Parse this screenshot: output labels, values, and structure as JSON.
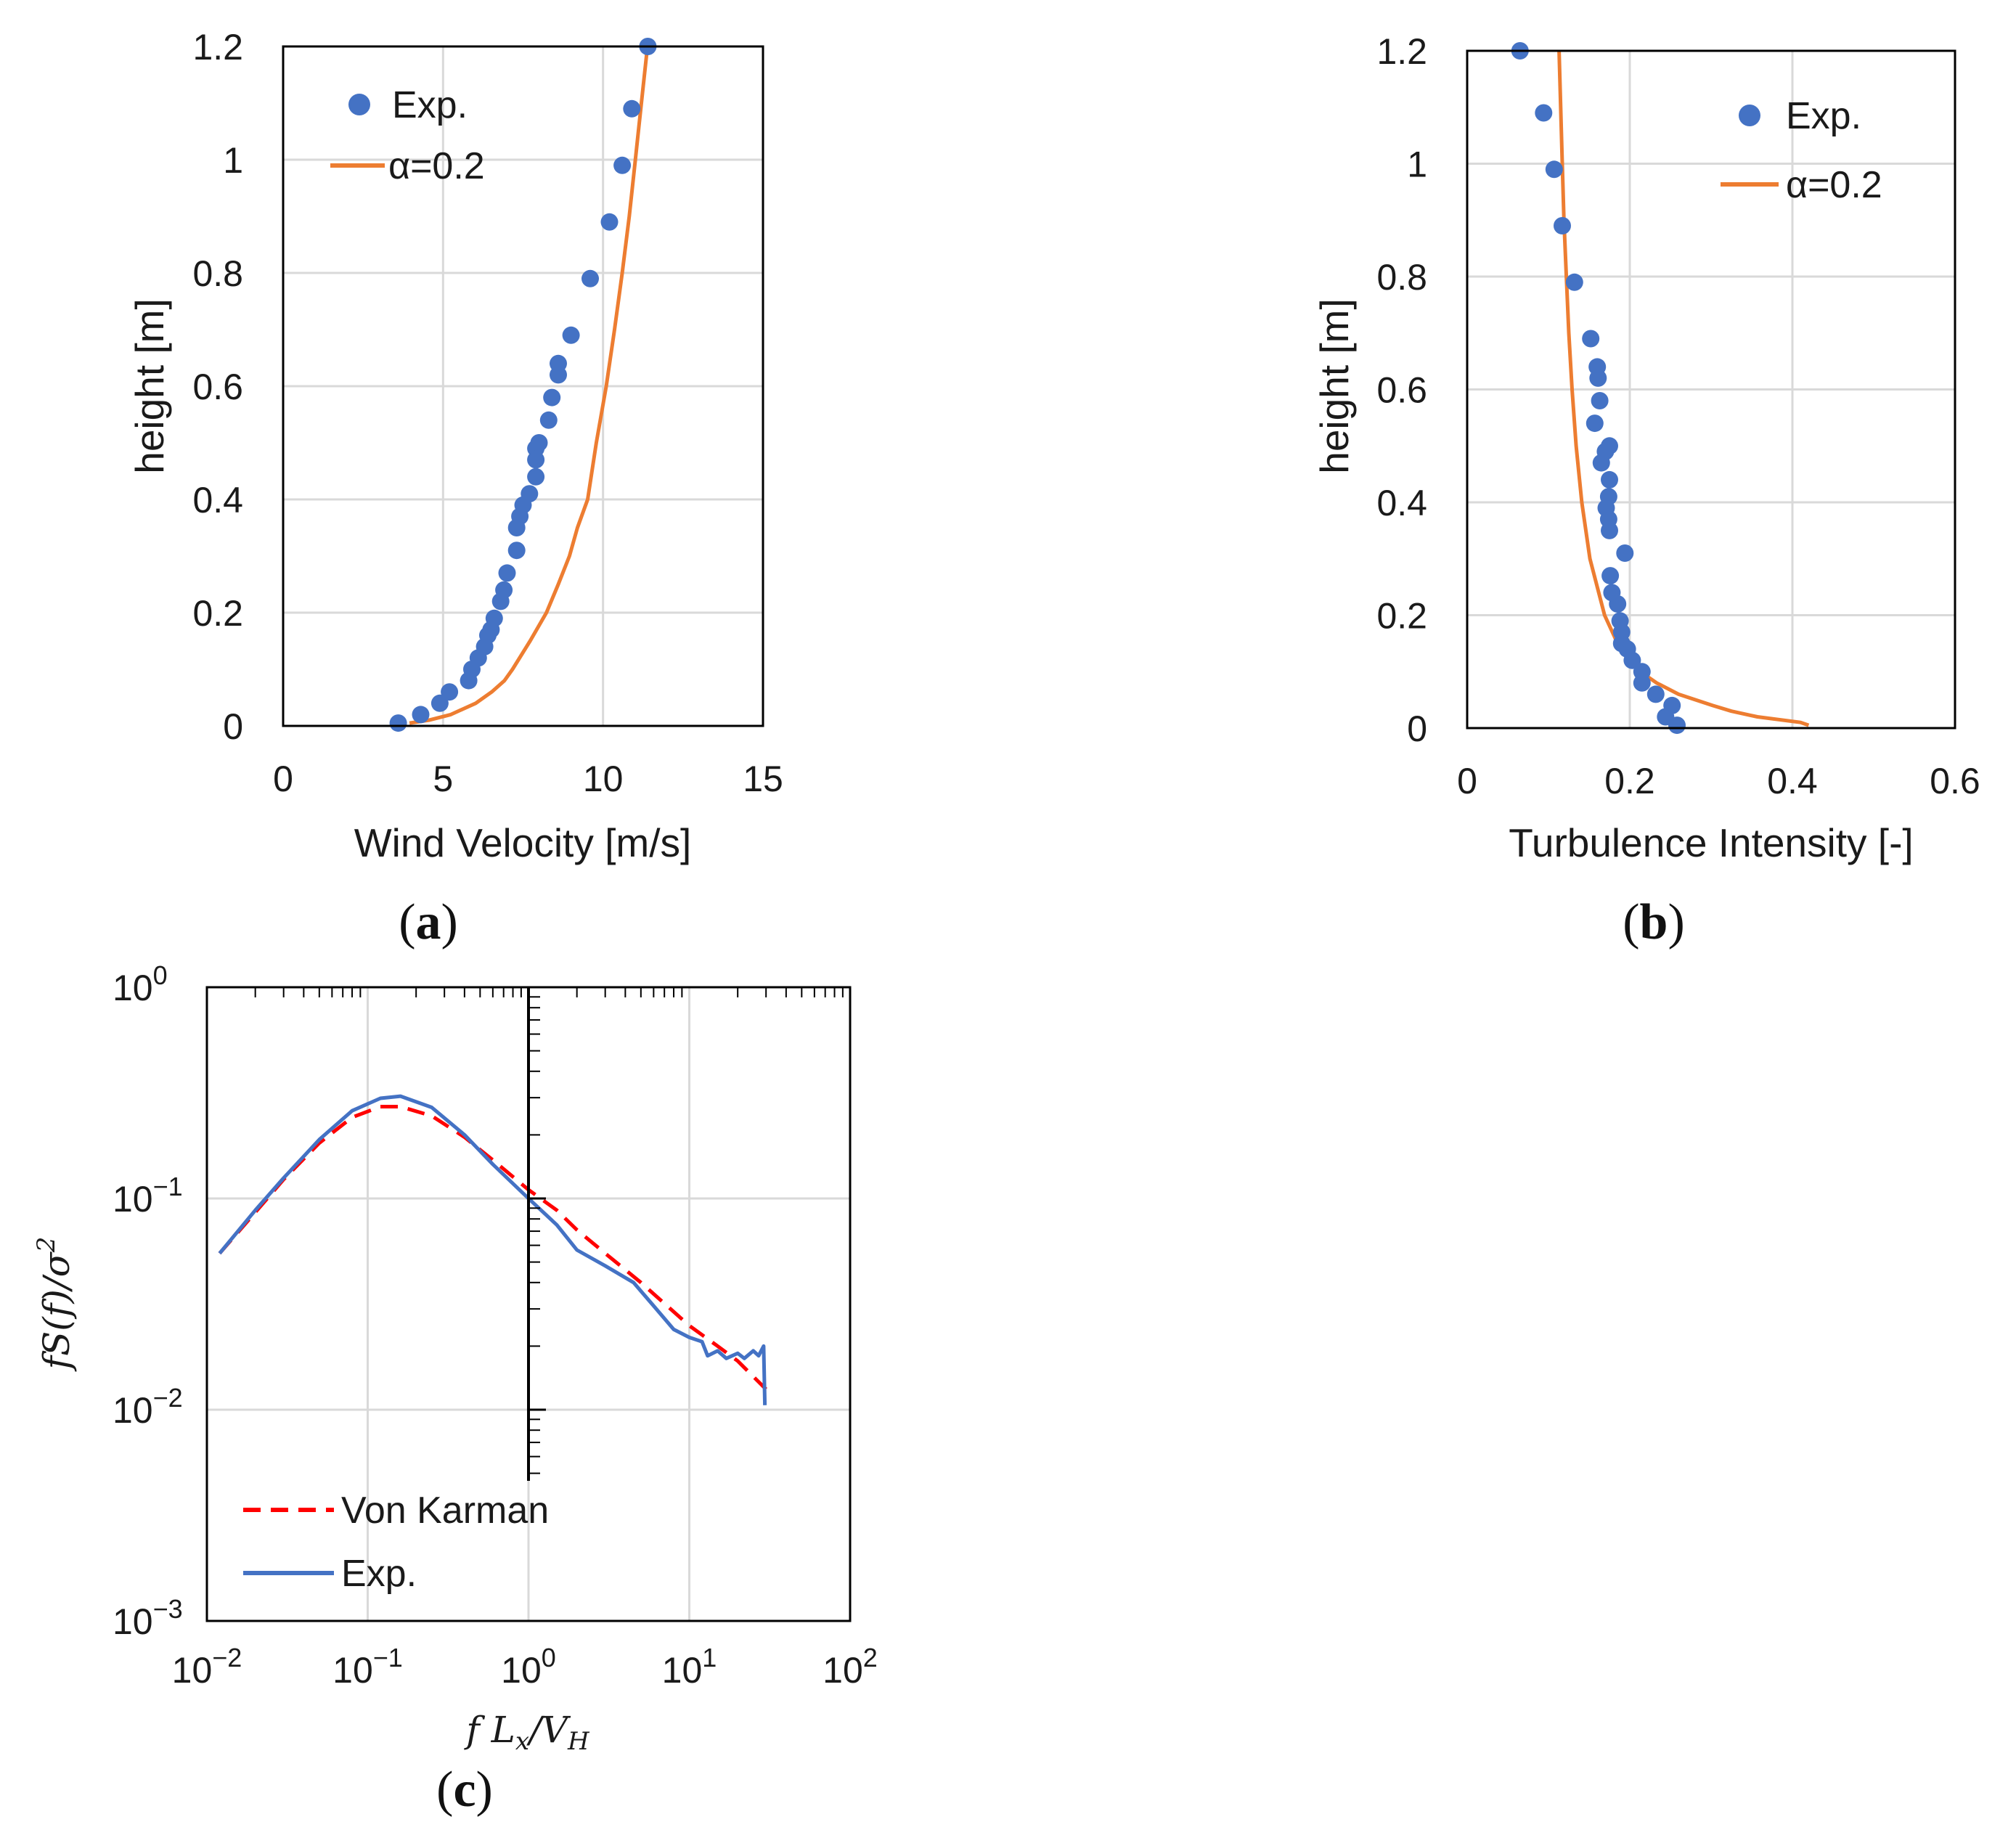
{
  "colors": {
    "exp_marker": "#4472c4",
    "alpha_line": "#ed7d31",
    "von_karman": "#ff0000",
    "exp_line": "#4472c4",
    "grid": "#d9d9d9"
  },
  "chart_data": [
    {
      "id": "a",
      "type": "scatter",
      "panel_label": "a",
      "xlabel": "Wind Velocity [m/s]",
      "ylabel": "height [m]",
      "xlim": [
        0,
        15
      ],
      "ylim": [
        0,
        1.2
      ],
      "xticks": [
        "0",
        "5",
        "10",
        "15"
      ],
      "yticks": [
        "0",
        "0.2",
        "0.4",
        "0.6",
        "0.8",
        "1",
        "1.2"
      ],
      "xtick_values": [
        0,
        5,
        10,
        15
      ],
      "ytick_values": [
        0,
        0.2,
        0.4,
        0.6,
        0.8,
        1.0,
        1.2
      ],
      "legend": [
        "Exp.",
        "α=0.2"
      ],
      "legend_position": "top-left",
      "series": [
        {
          "name": "Exp.",
          "kind": "marker",
          "points": [
            [
              3.6,
              0.005
            ],
            [
              4.3,
              0.02
            ],
            [
              4.9,
              0.04
            ],
            [
              5.2,
              0.06
            ],
            [
              5.8,
              0.08
            ],
            [
              5.9,
              0.1
            ],
            [
              6.1,
              0.12
            ],
            [
              6.3,
              0.14
            ],
            [
              6.4,
              0.16
            ],
            [
              6.5,
              0.17
            ],
            [
              6.6,
              0.19
            ],
            [
              6.8,
              0.22
            ],
            [
              6.9,
              0.24
            ],
            [
              7.0,
              0.27
            ],
            [
              7.3,
              0.31
            ],
            [
              7.3,
              0.35
            ],
            [
              7.4,
              0.37
            ],
            [
              7.5,
              0.39
            ],
            [
              7.7,
              0.41
            ],
            [
              7.9,
              0.44
            ],
            [
              7.9,
              0.47
            ],
            [
              7.9,
              0.49
            ],
            [
              8.0,
              0.5
            ],
            [
              8.3,
              0.54
            ],
            [
              8.4,
              0.58
            ],
            [
              8.6,
              0.62
            ],
            [
              8.6,
              0.64
            ],
            [
              9.0,
              0.69
            ],
            [
              9.6,
              0.79
            ],
            [
              10.2,
              0.89
            ],
            [
              10.6,
              0.99
            ],
            [
              10.9,
              1.09
            ],
            [
              11.4,
              1.2
            ]
          ]
        },
        {
          "name": "α=0.2",
          "kind": "line",
          "points": [
            [
              3.95,
              0.005
            ],
            [
              4.55,
              0.01
            ],
            [
              5.24,
              0.02
            ],
            [
              6.02,
              0.04
            ],
            [
              6.52,
              0.06
            ],
            [
              6.92,
              0.08
            ],
            [
              7.17,
              0.1
            ],
            [
              7.72,
              0.15
            ],
            [
              8.23,
              0.2
            ],
            [
              8.6,
              0.25
            ],
            [
              8.95,
              0.3
            ],
            [
              9.2,
              0.35
            ],
            [
              9.52,
              0.4
            ],
            [
              9.79,
              0.5
            ],
            [
              10.1,
              0.6
            ],
            [
              10.36,
              0.7
            ],
            [
              10.6,
              0.8
            ],
            [
              10.82,
              0.9
            ],
            [
              11.01,
              1.0
            ],
            [
              11.2,
              1.1
            ],
            [
              11.39,
              1.2
            ]
          ]
        }
      ]
    },
    {
      "id": "b",
      "type": "scatter",
      "panel_label": "b",
      "xlabel": "Turbulence Intensity [-]",
      "ylabel": "height [m]",
      "xlim": [
        0,
        0.6
      ],
      "ylim": [
        0,
        1.2
      ],
      "xticks": [
        "0",
        "0.2",
        "0.4",
        "0.6"
      ],
      "yticks": [
        "0",
        "0.2",
        "0.4",
        "0.6",
        "0.8",
        "1",
        "1.2"
      ],
      "xtick_values": [
        0,
        0.2,
        0.4,
        0.6
      ],
      "ytick_values": [
        0,
        0.2,
        0.4,
        0.6,
        0.8,
        1.0,
        1.2
      ],
      "legend": [
        "Exp.",
        "α=0.2"
      ],
      "legend_position": "top-right",
      "series": [
        {
          "name": "Exp.",
          "kind": "marker",
          "points": [
            [
              0.065,
              1.2
            ],
            [
              0.094,
              1.09
            ],
            [
              0.107,
              0.99
            ],
            [
              0.117,
              0.89
            ],
            [
              0.132,
              0.79
            ],
            [
              0.152,
              0.69
            ],
            [
              0.16,
              0.64
            ],
            [
              0.161,
              0.62
            ],
            [
              0.163,
              0.58
            ],
            [
              0.157,
              0.54
            ],
            [
              0.175,
              0.5
            ],
            [
              0.17,
              0.49
            ],
            [
              0.165,
              0.47
            ],
            [
              0.175,
              0.44
            ],
            [
              0.174,
              0.41
            ],
            [
              0.171,
              0.39
            ],
            [
              0.174,
              0.37
            ],
            [
              0.175,
              0.35
            ],
            [
              0.194,
              0.31
            ],
            [
              0.176,
              0.27
            ],
            [
              0.178,
              0.24
            ],
            [
              0.185,
              0.22
            ],
            [
              0.188,
              0.19
            ],
            [
              0.19,
              0.17
            ],
            [
              0.19,
              0.15
            ],
            [
              0.197,
              0.14
            ],
            [
              0.203,
              0.12
            ],
            [
              0.215,
              0.1
            ],
            [
              0.215,
              0.08
            ],
            [
              0.232,
              0.06
            ],
            [
              0.252,
              0.04
            ],
            [
              0.244,
              0.02
            ],
            [
              0.258,
              0.005
            ]
          ]
        },
        {
          "name": "α=0.2",
          "kind": "line",
          "points": [
            [
              0.113,
              1.2
            ],
            [
              0.115,
              1.1
            ],
            [
              0.117,
              1.0
            ],
            [
              0.119,
              0.9
            ],
            [
              0.122,
              0.8
            ],
            [
              0.125,
              0.7
            ],
            [
              0.129,
              0.6
            ],
            [
              0.134,
              0.5
            ],
            [
              0.141,
              0.4
            ],
            [
              0.151,
              0.3
            ],
            [
              0.169,
              0.2
            ],
            [
              0.185,
              0.15
            ],
            [
              0.213,
              0.1
            ],
            [
              0.233,
              0.08
            ],
            [
              0.26,
              0.06
            ],
            [
              0.302,
              0.04
            ],
            [
              0.325,
              0.03
            ],
            [
              0.357,
              0.02
            ],
            [
              0.41,
              0.01
            ],
            [
              0.42,
              0.005
            ]
          ]
        }
      ]
    },
    {
      "id": "c",
      "type": "line",
      "panel_label": "c",
      "xlabel": "fLx/VH",
      "ylabel": "fS(f)/σ2",
      "xscale": "log",
      "yscale": "log",
      "xlim": [
        0.01,
        100
      ],
      "ylim": [
        0.001,
        1
      ],
      "xticks": [
        {
          "base": "10",
          "exp": "−2"
        },
        {
          "base": "10",
          "exp": "−1"
        },
        {
          "base": "10",
          "exp": "0"
        },
        {
          "base": "10",
          "exp": "1"
        },
        {
          "base": "10",
          "exp": "2"
        }
      ],
      "yticks": [
        {
          "base": "10",
          "exp": "0"
        },
        {
          "base": "10",
          "exp": "−1"
        },
        {
          "base": "10",
          "exp": "−2"
        },
        {
          "base": "10",
          "exp": "−3"
        }
      ],
      "xtick_values": [
        0.01,
        0.1,
        1,
        10,
        100
      ],
      "ytick_values": [
        1,
        0.1,
        0.01,
        0.001
      ],
      "legend": [
        "Von Karman",
        "Exp."
      ],
      "legend_position": "bottom-left",
      "series": [
        {
          "name": "Von Karman",
          "kind": "dashed",
          "points": [
            [
              0.012,
              0.055
            ],
            [
              0.02,
              0.086
            ],
            [
              0.03,
              0.123
            ],
            [
              0.05,
              0.183
            ],
            [
              0.08,
              0.242
            ],
            [
              0.12,
              0.272
            ],
            [
              0.16,
              0.272
            ],
            [
              0.25,
              0.246
            ],
            [
              0.4,
              0.195
            ],
            [
              0.6,
              0.152
            ],
            [
              1.0,
              0.11
            ],
            [
              1.5,
              0.088
            ],
            [
              2.0,
              0.071
            ],
            [
              3.0,
              0.055
            ],
            [
              5.0,
              0.04
            ],
            [
              10.0,
              0.025
            ],
            [
              15.0,
              0.02
            ],
            [
              20.0,
              0.017
            ],
            [
              30.0,
              0.0125
            ]
          ]
        },
        {
          "name": "Exp.",
          "kind": "solid",
          "points": [
            [
              0.012,
              0.055
            ],
            [
              0.02,
              0.088
            ],
            [
              0.03,
              0.125
            ],
            [
              0.05,
              0.19
            ],
            [
              0.08,
              0.26
            ],
            [
              0.12,
              0.298
            ],
            [
              0.16,
              0.305
            ],
            [
              0.25,
              0.27
            ],
            [
              0.4,
              0.2
            ],
            [
              0.6,
              0.145
            ],
            [
              1.0,
              0.1
            ],
            [
              1.5,
              0.075
            ],
            [
              2.0,
              0.057
            ],
            [
              3.0,
              0.048
            ],
            [
              4.5,
              0.04
            ],
            [
              6.0,
              0.031
            ],
            [
              8.0,
              0.024
            ],
            [
              10.0,
              0.022
            ],
            [
              12.0,
              0.021
            ],
            [
              13.0,
              0.018
            ],
            [
              15.0,
              0.019
            ],
            [
              17.0,
              0.0175
            ],
            [
              20.0,
              0.0185
            ],
            [
              22.0,
              0.0175
            ],
            [
              25.0,
              0.019
            ],
            [
              27.0,
              0.018
            ],
            [
              29.0,
              0.02
            ],
            [
              29.5,
              0.0105
            ]
          ]
        }
      ]
    }
  ]
}
